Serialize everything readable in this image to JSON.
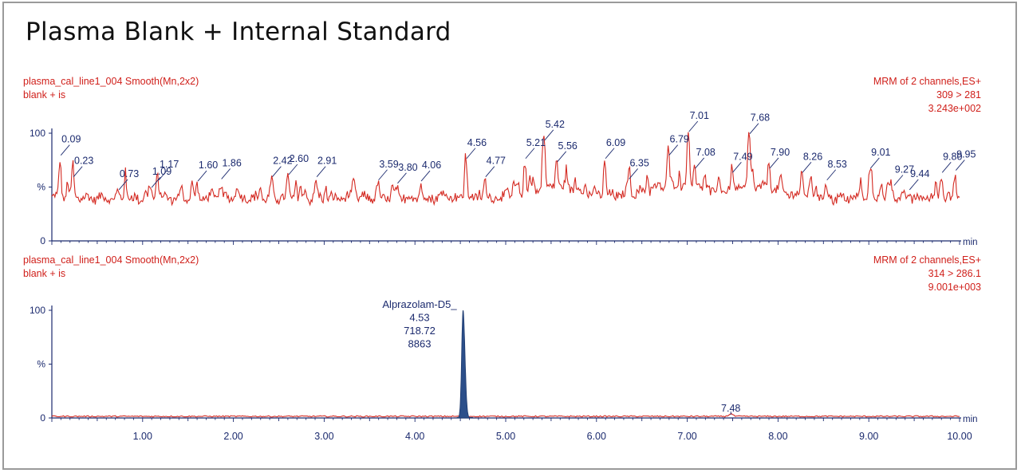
{
  "title": "Plasma Blank + Internal Standard",
  "colors": {
    "trace": "#d42a22",
    "header": "#d0201b",
    "axis": "#1b2a6e",
    "label": "#1b2a6e",
    "peak_fill": "#2c4f8a"
  },
  "chart_data": [
    {
      "type": "line",
      "name": "plasma_cal_line1_004  Smooth(Mn,2x2)",
      "sample": "blank + is",
      "channel": "MRM of 2 channels,ES+",
      "transition": "309 > 281",
      "intensity": "3.243e+002",
      "xlabel": "min",
      "ylabel": "%",
      "xlim": [
        0,
        10
      ],
      "ylim": [
        0,
        100
      ],
      "yticks": [
        "0",
        "%",
        "100"
      ],
      "baseline": 40,
      "peaks": [
        {
          "x": 0.09,
          "y": 78,
          "label": "0.09"
        },
        {
          "x": 0.23,
          "y": 58,
          "label": "0.23"
        },
        {
          "x": 0.73,
          "y": 46,
          "label": "0.73"
        },
        {
          "x": 1.09,
          "y": 48,
          "label": "1.09"
        },
        {
          "x": 1.17,
          "y": 55,
          "label": "1.17"
        },
        {
          "x": 1.6,
          "y": 54,
          "label": "1.60"
        },
        {
          "x": 1.86,
          "y": 56,
          "label": "1.86"
        },
        {
          "x": 2.42,
          "y": 58,
          "label": "2.42"
        },
        {
          "x": 2.6,
          "y": 60,
          "label": "2.60"
        },
        {
          "x": 2.91,
          "y": 58,
          "label": "2.91"
        },
        {
          "x": 3.59,
          "y": 55,
          "label": "3.59"
        },
        {
          "x": 3.8,
          "y": 52,
          "label": "3.80"
        },
        {
          "x": 4.06,
          "y": 54,
          "label": "4.06"
        },
        {
          "x": 4.56,
          "y": 75,
          "label": "4.56"
        },
        {
          "x": 4.77,
          "y": 58,
          "label": "4.77"
        },
        {
          "x": 5.21,
          "y": 75,
          "label": "5.21"
        },
        {
          "x": 5.42,
          "y": 92,
          "label": "5.42"
        },
        {
          "x": 5.56,
          "y": 72,
          "label": "5.56"
        },
        {
          "x": 6.09,
          "y": 75,
          "label": "6.09"
        },
        {
          "x": 6.35,
          "y": 56,
          "label": "6.35"
        },
        {
          "x": 6.79,
          "y": 78,
          "label": "6.79"
        },
        {
          "x": 7.01,
          "y": 100,
          "label": "7.01"
        },
        {
          "x": 7.08,
          "y": 66,
          "label": "7.08"
        },
        {
          "x": 7.49,
          "y": 62,
          "label": "7.49"
        },
        {
          "x": 7.68,
          "y": 98,
          "label": "7.68"
        },
        {
          "x": 7.9,
          "y": 66,
          "label": "7.90"
        },
        {
          "x": 8.26,
          "y": 62,
          "label": "8.26"
        },
        {
          "x": 8.53,
          "y": 55,
          "label": "8.53"
        },
        {
          "x": 9.01,
          "y": 66,
          "label": "9.01"
        },
        {
          "x": 9.27,
          "y": 50,
          "label": "9.27"
        },
        {
          "x": 9.44,
          "y": 46,
          "label": "9.44"
        },
        {
          "x": 9.8,
          "y": 62,
          "label": "9.80"
        },
        {
          "x": 9.95,
          "y": 64,
          "label": "9.95"
        }
      ]
    },
    {
      "type": "line",
      "name": "plasma_cal_line1_004  Smooth(Mn,2x2)",
      "sample": "blank + is",
      "channel": "MRM of 2 channels,ES+",
      "transition": "314 > 286.1",
      "intensity": "9.001e+003",
      "xlabel": "min",
      "ylabel": "%",
      "xlim": [
        0,
        10
      ],
      "ylim": [
        0,
        100
      ],
      "yticks": [
        "0",
        "%",
        "100"
      ],
      "xticks": [
        "1.00",
        "2.00",
        "3.00",
        "4.00",
        "5.00",
        "6.00",
        "7.00",
        "8.00",
        "9.00",
        "10.00"
      ],
      "baseline": 1.5,
      "main_peak": {
        "compound": "Alprazolam-D5",
        "rt": 4.53,
        "area": "718.72",
        "height": "8863",
        "y": 100
      },
      "peak_label_lines": [
        "Alprazolam-D5_",
        "4.53",
        "718.72",
        "8863"
      ],
      "minor_peaks": [
        {
          "x": 7.48,
          "y": 4,
          "label": "7.48"
        }
      ]
    }
  ]
}
